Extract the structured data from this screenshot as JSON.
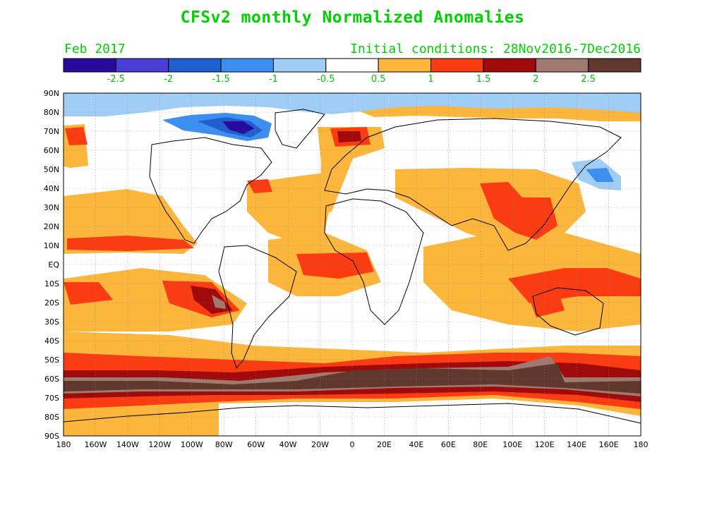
{
  "title": "CFSv2 monthly Normalized Anomalies",
  "valid_month": "Feb 2017",
  "initial_conditions": "Initial conditions: 28Nov2016-7Dec2016",
  "colorbar": {
    "bins": [
      {
        "color": "#2a0a9e"
      },
      {
        "color": "#4a3ed6"
      },
      {
        "color": "#1f5fd0"
      },
      {
        "color": "#3c8ff0"
      },
      {
        "color": "#a0cdf5"
      },
      {
        "color": "#ffffff"
      },
      {
        "color": "#fdb63c"
      },
      {
        "color": "#fb3c12"
      },
      {
        "color": "#a00a0a"
      },
      {
        "color": "#a07a6e"
      },
      {
        "color": "#60382e"
      }
    ],
    "labels": [
      "-2.5",
      "-2",
      "-1.5",
      "-1",
      "-0.5",
      "0.5",
      "1",
      "1.5",
      "2",
      "2.5"
    ]
  },
  "axes": {
    "lat_ticks": [
      "90N",
      "80N",
      "70N",
      "60N",
      "50N",
      "40N",
      "30N",
      "20N",
      "10N",
      "EQ",
      "10S",
      "20S",
      "30S",
      "40S",
      "50S",
      "60S",
      "70S",
      "80S",
      "90S"
    ],
    "lon_ticks": [
      "180",
      "160W",
      "140W",
      "120W",
      "100W",
      "80W",
      "60W",
      "40W",
      "20W",
      "0",
      "20E",
      "40E",
      "60E",
      "80E",
      "100E",
      "120E",
      "140E",
      "160E",
      "180"
    ]
  },
  "colors": {
    "text": "#00d200",
    "near_normal": "#ffffff",
    "weak_pos": "#fdb63c",
    "mod_pos": "#fb3c12",
    "strong_pos": "#a00a0a",
    "very_strong_pos": "#a07a6e",
    "extreme_pos": "#60382e",
    "weak_neg": "#a0cdf5",
    "mod_neg": "#3c8ff0",
    "strong_neg": "#1f5fd0",
    "very_strong_neg": "#4a3ed6"
  }
}
